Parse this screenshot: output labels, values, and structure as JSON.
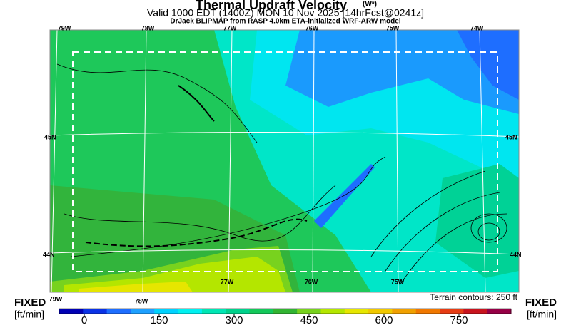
{
  "header": {
    "title": "Thermal Updraft Velocity",
    "title_units": "(W*)",
    "subtitle": "Valid 1000 EDT (1400Z) MON 10 Nov 2025 [14hrFcst@0241z]",
    "model": "DrJack BLIPMAP from RASP 4.0km ETA-initialized WRF-ARW model"
  },
  "map": {
    "top_lon_labels": [
      "79W",
      "78W",
      "77W",
      "76W",
      "75W",
      "74W"
    ],
    "bottom_lon_labels": [
      "79W",
      "78W",
      "77W",
      "76W",
      "75W"
    ],
    "left_lat_labels": [
      "45N",
      "44N"
    ],
    "right_lat_labels": [
      "45N",
      "44N"
    ],
    "terrain_note": "Terrain contours: 250 ft"
  },
  "legend": {
    "left_label": "FIXED",
    "left_units": "[ft/min]",
    "right_label": "FIXED",
    "right_units": "[ft/min]",
    "ticks": [
      0,
      150,
      300,
      450,
      600,
      750
    ],
    "colors": [
      "#0000b4",
      "#0a32e6",
      "#1e6eff",
      "#1ea0ff",
      "#00d2ff",
      "#00f0f0",
      "#00e6b4",
      "#00d28c",
      "#14c85a",
      "#32b432",
      "#78d21e",
      "#b4e600",
      "#e6e600",
      "#f0c800",
      "#f0a000",
      "#f07800",
      "#e63c14",
      "#c8141e",
      "#960046"
    ]
  }
}
